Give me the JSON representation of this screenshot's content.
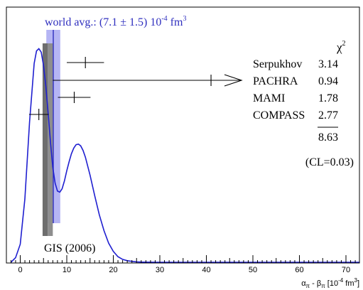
{
  "chart_data": {
    "type": "line",
    "title": "",
    "xlabel": {
      "main": "α",
      "sub1": "π",
      "minus": " - β",
      "sub2": "π",
      "unit": " [10",
      "unit_exp": "-4",
      "unit_end": " fm",
      "unit_end_exp": "3",
      "close": "]"
    },
    "ylabel": "",
    "xlim": [
      -2,
      73
    ],
    "ylim": [
      0,
      1
    ],
    "x_ticks": [
      0,
      10,
      20,
      30,
      40,
      50,
      60,
      70
    ],
    "grid": false,
    "world_avg": {
      "center": 7.1,
      "error": 1.5,
      "label_main": "world avg.: (7.1 ± 1.5) 10",
      "label_exp": "-4",
      "label_unit": " fm",
      "label_unit_exp": "3",
      "color": "#2f2fbf",
      "band_color": "#a8a8f2"
    },
    "gis": {
      "label": "GIS (2006)",
      "band": [
        4.8,
        7.0
      ],
      "dark_band": [
        4.8,
        5.9
      ],
      "light_band": [
        5.9,
        7.0
      ]
    },
    "curve": {
      "color": "#1f1fd0",
      "x": [
        -2,
        -1,
        0,
        1,
        2,
        3,
        3.5,
        4,
        4.5,
        5,
        5.5,
        6,
        6.5,
        7,
        7.5,
        8,
        8.5,
        9,
        9.5,
        10,
        10.5,
        11,
        11.5,
        12,
        12.5,
        13,
        13.5,
        14,
        15,
        16,
        17,
        18,
        19,
        20,
        21,
        22,
        23,
        24,
        25,
        26,
        27,
        28,
        30,
        35,
        73
      ],
      "y": [
        0.0,
        0.02,
        0.08,
        0.28,
        0.62,
        0.88,
        0.935,
        0.945,
        0.93,
        0.87,
        0.78,
        0.66,
        0.53,
        0.42,
        0.35,
        0.315,
        0.31,
        0.325,
        0.36,
        0.405,
        0.445,
        0.48,
        0.505,
        0.52,
        0.523,
        0.515,
        0.495,
        0.465,
        0.385,
        0.295,
        0.21,
        0.14,
        0.085,
        0.048,
        0.025,
        0.013,
        0.007,
        0.004,
        0.002,
        0.001,
        0.0005,
        0.0002,
        0.0,
        0.0,
        0.0
      ]
    },
    "measurements": [
      {
        "name": "Serpukhov",
        "value": 14,
        "err": 4,
        "chi2": "3.14",
        "row": 1,
        "arrow": false
      },
      {
        "name": "PACHRA",
        "value": 41,
        "err": 34,
        "chi2": "0.94",
        "row": 2,
        "arrow": true
      },
      {
        "name": "MAMI",
        "value": 11.6,
        "err": 3.5,
        "chi2": "1.78",
        "row": 3,
        "arrow": false
      },
      {
        "name": "COMPASS",
        "value": 4.0,
        "err": 2.1,
        "chi2": "2.77",
        "row": 4,
        "arrow": false
      }
    ],
    "chi2_header": "χ",
    "chi2_header_sup": "2",
    "chi2_total": "8.63",
    "cl_label": "(CL=0.03)"
  }
}
